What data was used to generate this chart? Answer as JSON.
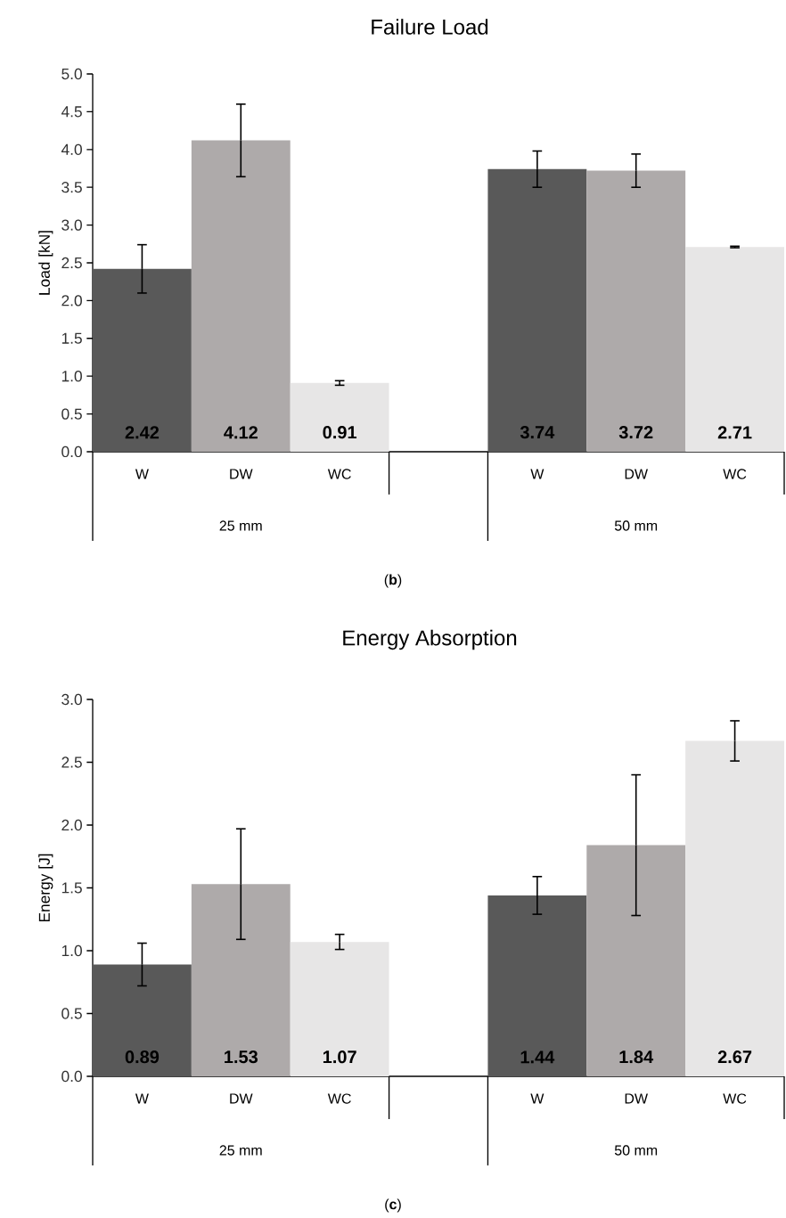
{
  "chart_data": [
    {
      "type": "bar",
      "title": "Failure Load",
      "ylabel": "Load [kN]",
      "categories": [
        "W",
        "DW",
        "WC",
        null,
        "W",
        "DW",
        "WC"
      ],
      "values": [
        2.42,
        4.12,
        0.91,
        null,
        3.74,
        3.72,
        2.71
      ],
      "errors": [
        0.32,
        0.48,
        0.03,
        null,
        0.24,
        0.22,
        0.01
      ],
      "colors": [
        "#595959",
        "#aeaaaa",
        "#e7e6e6",
        null,
        "#595959",
        "#aeaaaa",
        "#e7e6e6"
      ],
      "ylim": [
        0,
        5
      ],
      "yticks": [
        {
          "value": 0,
          "label": "0.0"
        },
        {
          "value": 0.5,
          "label": "0.5"
        },
        {
          "value": 1,
          "label": "1.0"
        },
        {
          "value": 1.5,
          "label": "1.5"
        },
        {
          "value": 2,
          "label": "2.0"
        },
        {
          "value": 2.5,
          "label": "2.5"
        },
        {
          "value": 3,
          "label": "3.0"
        },
        {
          "value": 3.5,
          "label": "3.5"
        },
        {
          "value": 4,
          "label": "4.0"
        },
        {
          "value": 4.5,
          "label": "4.5"
        },
        {
          "value": 5,
          "label": "5.0"
        }
      ],
      "data_labels": true,
      "annotations": [
        "25 mm",
        "50 mm",
        "(**b**)"
      ]
    },
    {
      "type": "bar",
      "title": "Energy Absorption",
      "ylabel": "Energy [J]",
      "categories": [
        "W",
        "DW",
        "WC",
        null,
        "W",
        "DW",
        "WC"
      ],
      "values": [
        0.89,
        1.53,
        1.07,
        null,
        1.44,
        1.84,
        2.67
      ],
      "errors": [
        0.17,
        0.44,
        0.06,
        null,
        0.15,
        0.56,
        0.16
      ],
      "colors": [
        "#595959",
        "#aeaaaa",
        "#e7e6e6",
        null,
        "#595959",
        "#aeaaaa",
        "#e7e6e6"
      ],
      "ylim": [
        0,
        3
      ],
      "yticks": [
        {
          "value": 0,
          "label": "0.0"
        },
        {
          "value": 0.5,
          "label": "0.5"
        },
        {
          "value": 1,
          "label": "1.0"
        },
        {
          "value": 1.5,
          "label": "1.5"
        },
        {
          "value": 2,
          "label": "2.0"
        },
        {
          "value": 2.5,
          "label": "2.5"
        },
        {
          "value": 3,
          "label": "3.0"
        }
      ],
      "data_labels": true,
      "annotations": [
        "25 mm",
        "50 mm",
        "(**c**)"
      ]
    }
  ]
}
